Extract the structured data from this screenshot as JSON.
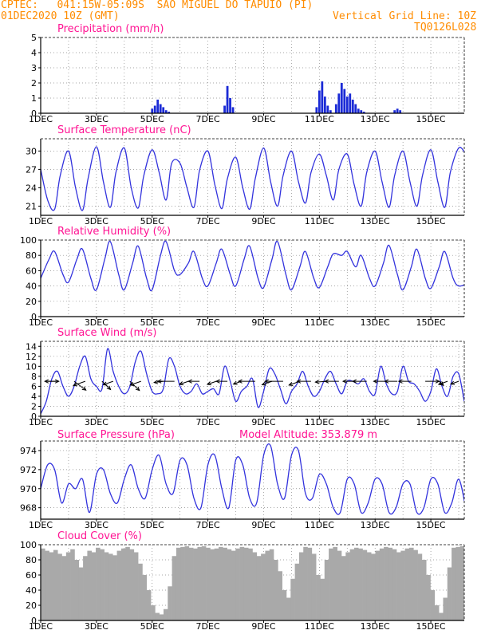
{
  "header": {
    "line1_left": "CPTEC:   041:15W-05:09S  SAO MIGUEL DO TAPUIO (PI)",
    "line2_left": "01DEC2020 10Z (GMT)",
    "line2_right": "Vertical Grid Line: 10Z",
    "line3_right": "TQ0126L028"
  },
  "colors": {
    "header": "#ff8c00",
    "title": "#ff1493",
    "line": "#3333dd",
    "bar": "#1a2ad6",
    "cloud": "#a9a9a9",
    "arrow": "#000000"
  },
  "chart_data": [
    {
      "type": "bar",
      "title": "Precipitation (mm/h)",
      "x_tick_labels": [
        "1DEC",
        "3DEC",
        "5DEC",
        "7DEC",
        "9DEC",
        "11DEC",
        "13DEC",
        "15DEC"
      ],
      "yticks": [
        "0",
        "1",
        "2",
        "3",
        "4",
        "5"
      ],
      "ylim": [
        0,
        5
      ],
      "x": [
        4.0,
        4.1,
        4.2,
        4.3,
        4.4,
        4.5,
        4.6,
        6.6,
        6.7,
        6.8,
        6.9,
        9.9,
        10.0,
        10.1,
        10.2,
        10.3,
        10.4,
        10.6,
        10.7,
        10.8,
        10.9,
        11.0,
        11.1,
        11.2,
        11.3,
        11.4,
        11.5,
        11.6,
        12.7,
        12.8,
        12.9
      ],
      "values": [
        0.3,
        0.5,
        0.9,
        0.6,
        0.4,
        0.2,
        0.1,
        0.5,
        1.8,
        1.0,
        0.4,
        0.4,
        1.5,
        2.1,
        1.1,
        0.5,
        0.2,
        0.6,
        1.3,
        2.0,
        1.6,
        1.1,
        1.3,
        0.9,
        0.6,
        0.3,
        0.2,
        0.1,
        0.2,
        0.3,
        0.2
      ]
    },
    {
      "type": "line",
      "title": "Surface Temperature (nC)",
      "x_tick_labels": [
        "1DEC",
        "3DEC",
        "5DEC",
        "7DEC",
        "9DEC",
        "11DEC",
        "13DEC",
        "15DEC"
      ],
      "yticks": [
        "21",
        "24",
        "27",
        "30"
      ],
      "ylim": [
        19.5,
        32
      ],
      "x": [
        0.0,
        0.25,
        0.5,
        0.7,
        1.0,
        1.25,
        1.5,
        1.7,
        2.0,
        2.25,
        2.5,
        2.7,
        3.0,
        3.25,
        3.5,
        3.7,
        4.0,
        4.25,
        4.5,
        4.7,
        5.0,
        5.25,
        5.5,
        5.7,
        6.0,
        6.25,
        6.5,
        6.7,
        7.0,
        7.25,
        7.5,
        7.7,
        8.0,
        8.25,
        8.5,
        8.7,
        9.0,
        9.25,
        9.5,
        9.7,
        10.0,
        10.25,
        10.5,
        10.7,
        11.0,
        11.25,
        11.5,
        11.7,
        12.0,
        12.25,
        12.5,
        12.7,
        13.0,
        13.25,
        13.5,
        13.7,
        14.0,
        14.25,
        14.5,
        14.7,
        15.0,
        15.25
      ],
      "values": [
        27.0,
        22.0,
        20.5,
        26.0,
        30.0,
        24.0,
        20.3,
        25.5,
        30.7,
        25.0,
        20.8,
        26.5,
        30.5,
        24.0,
        20.7,
        26.0,
        30.2,
        26.5,
        22.0,
        28.0,
        28.0,
        24.0,
        20.8,
        26.8,
        30.0,
        24.5,
        20.6,
        25.5,
        29.0,
        24.0,
        20.5,
        25.5,
        30.5,
        25.0,
        21.0,
        26.0,
        30.0,
        25.0,
        21.5,
        26.5,
        29.5,
        26.0,
        22.0,
        27.0,
        29.5,
        24.5,
        21.0,
        26.5,
        30.0,
        25.0,
        20.8,
        26.0,
        30.0,
        25.0,
        21.0,
        26.0,
        30.2,
        25.0,
        20.8,
        26.5,
        30.5,
        29.5
      ]
    },
    {
      "type": "line",
      "title": "Relative Humidity (%)",
      "x_tick_labels": [
        "1DEC",
        "3DEC",
        "5DEC",
        "7DEC",
        "9DEC",
        "11DEC",
        "13DEC",
        "15DEC"
      ],
      "yticks": [
        "0",
        "20",
        "40",
        "60",
        "80",
        "100"
      ],
      "ylim": [
        0,
        100
      ],
      "x": [
        0.0,
        0.3,
        0.5,
        0.8,
        1.0,
        1.3,
        1.5,
        1.8,
        2.0,
        2.3,
        2.5,
        2.8,
        3.0,
        3.3,
        3.5,
        3.8,
        4.0,
        4.3,
        4.5,
        4.8,
        5.0,
        5.3,
        5.5,
        5.8,
        6.0,
        6.3,
        6.5,
        6.8,
        7.0,
        7.3,
        7.5,
        7.8,
        8.0,
        8.3,
        8.5,
        8.8,
        9.0,
        9.3,
        9.5,
        9.8,
        10.0,
        10.3,
        10.5,
        10.8,
        11.0,
        11.3,
        11.5,
        11.8,
        12.0,
        12.3,
        12.5,
        12.8,
        13.0,
        13.3,
        13.5,
        13.8,
        14.0,
        14.3,
        14.5,
        14.8,
        15.0,
        15.3
      ],
      "values": [
        50,
        75,
        85,
        55,
        45,
        75,
        88,
        50,
        35,
        75,
        98,
        55,
        35,
        70,
        92,
        50,
        35,
        80,
        98,
        60,
        55,
        70,
        85,
        50,
        40,
        70,
        88,
        55,
        40,
        75,
        92,
        50,
        38,
        75,
        98,
        55,
        35,
        65,
        85,
        50,
        38,
        65,
        82,
        80,
        85,
        65,
        80,
        50,
        40,
        70,
        93,
        55,
        35,
        65,
        88,
        50,
        37,
        65,
        85,
        50,
        40,
        43
      ]
    },
    {
      "type": "line",
      "title": "Surface Wind (m/s)",
      "x_tick_labels": [
        "1DEC",
        "3DEC",
        "5DEC",
        "7DEC",
        "9DEC",
        "11DEC",
        "13DEC",
        "15DEC"
      ],
      "yticks": [
        "0",
        "2",
        "4",
        "6",
        "8",
        "10",
        "12",
        "14"
      ],
      "ylim": [
        0,
        15
      ],
      "x": [
        0.0,
        0.2,
        0.4,
        0.6,
        0.8,
        1.0,
        1.2,
        1.4,
        1.6,
        1.8,
        2.0,
        2.2,
        2.4,
        2.6,
        2.8,
        3.0,
        3.2,
        3.4,
        3.6,
        3.8,
        4.0,
        4.2,
        4.4,
        4.6,
        4.8,
        5.0,
        5.2,
        5.4,
        5.6,
        5.8,
        6.0,
        6.2,
        6.4,
        6.6,
        6.8,
        7.0,
        7.2,
        7.4,
        7.6,
        7.8,
        8.0,
        8.2,
        8.4,
        8.6,
        8.8,
        9.0,
        9.2,
        9.4,
        9.6,
        9.8,
        10.0,
        10.2,
        10.4,
        10.6,
        10.8,
        11.0,
        11.2,
        11.4,
        11.6,
        11.8,
        12.0,
        12.2,
        12.4,
        12.6,
        12.8,
        13.0,
        13.2,
        13.4,
        13.6,
        13.8,
        14.0,
        14.2,
        14.4,
        14.6,
        14.8,
        15.0,
        15.2
      ],
      "values": [
        0.5,
        3.0,
        7.5,
        9.0,
        6.0,
        4.0,
        6.0,
        10.0,
        12.0,
        7.5,
        6.0,
        5.5,
        13.5,
        9.0,
        6.0,
        4.5,
        6.0,
        11.0,
        13.0,
        8.5,
        5.0,
        4.5,
        5.5,
        11.5,
        10.0,
        6.0,
        4.5,
        5.0,
        6.5,
        4.5,
        5.0,
        5.5,
        4.5,
        10.0,
        7.0,
        3.0,
        5.0,
        6.0,
        7.5,
        1.8,
        5.0,
        9.5,
        8.5,
        5.5,
        2.5,
        5.0,
        6.5,
        9.0,
        6.0,
        4.0,
        5.0,
        7.5,
        9.0,
        6.5,
        4.5,
        7.0,
        7.0,
        6.5,
        7.5,
        5.0,
        4.5,
        10.0,
        6.5,
        4.5,
        5.0,
        10.0,
        7.0,
        6.5,
        5.0,
        3.0,
        5.0,
        9.5,
        6.0,
        4.0,
        8.0,
        8.5,
        3.0
      ],
      "arrows": [
        {
          "x": 0.2,
          "dir_deg": 90,
          "len": 0.45
        },
        {
          "x": 0.6,
          "dir_deg": 270,
          "len": 0.45
        },
        {
          "x": 1.2,
          "dir_deg": 155,
          "len": 1.0
        },
        {
          "x": 1.6,
          "dir_deg": 225,
          "len": 0.6
        },
        {
          "x": 2.2,
          "dir_deg": 160,
          "len": 0.9
        },
        {
          "x": 2.6,
          "dir_deg": 225,
          "len": 0.5
        },
        {
          "x": 3.2,
          "dir_deg": 160,
          "len": 1.0
        },
        {
          "x": 3.6,
          "dir_deg": 225,
          "len": 0.55
        },
        {
          "x": 4.4,
          "dir_deg": 250,
          "len": 0.35
        },
        {
          "x": 4.8,
          "dir_deg": 270,
          "len": 0.6
        },
        {
          "x": 5.3,
          "dir_deg": 225,
          "len": 0.45
        },
        {
          "x": 5.7,
          "dir_deg": 270,
          "len": 0.4
        },
        {
          "x": 6.3,
          "dir_deg": 225,
          "len": 0.45
        },
        {
          "x": 6.7,
          "dir_deg": 270,
          "len": 0.4
        },
        {
          "x": 7.2,
          "dir_deg": 225,
          "len": 0.4
        },
        {
          "x": 7.7,
          "dir_deg": 270,
          "len": 0.6
        },
        {
          "x": 8.3,
          "dir_deg": 225,
          "len": 0.5
        },
        {
          "x": 8.7,
          "dir_deg": 270,
          "len": 0.65
        },
        {
          "x": 9.3,
          "dir_deg": 225,
          "len": 0.55
        },
        {
          "x": 9.7,
          "dir_deg": 270,
          "len": 0.5
        },
        {
          "x": 10.3,
          "dir_deg": 260,
          "len": 0.45
        },
        {
          "x": 10.7,
          "dir_deg": 270,
          "len": 0.5
        },
        {
          "x": 11.3,
          "dir_deg": 270,
          "len": 0.45
        },
        {
          "x": 11.7,
          "dir_deg": 270,
          "len": 0.5
        },
        {
          "x": 12.4,
          "dir_deg": 270,
          "len": 0.45
        },
        {
          "x": 12.8,
          "dir_deg": 270,
          "len": 0.45
        },
        {
          "x": 13.3,
          "dir_deg": 270,
          "len": 0.45
        },
        {
          "x": 13.8,
          "dir_deg": 90,
          "len": 0.5
        },
        {
          "x": 14.3,
          "dir_deg": 160,
          "len": 0.45
        },
        {
          "x": 14.6,
          "dir_deg": 225,
          "len": 0.45
        },
        {
          "x": 15.0,
          "dir_deg": 225,
          "len": 0.4
        }
      ]
    },
    {
      "type": "line",
      "title": "Surface Pressure (hPa)",
      "annotation": "Model Altitude: 353.879  m",
      "x_tick_labels": [
        "1DEC",
        "3DEC",
        "5DEC",
        "7DEC",
        "9DEC",
        "11DEC",
        "13DEC",
        "15DEC"
      ],
      "yticks": [
        "968",
        "970",
        "972",
        "974"
      ],
      "ylim": [
        966.8,
        975
      ],
      "x": [
        0.0,
        0.25,
        0.5,
        0.75,
        1.0,
        1.25,
        1.5,
        1.75,
        2.0,
        2.25,
        2.5,
        2.75,
        3.0,
        3.25,
        3.5,
        3.75,
        4.0,
        4.25,
        4.5,
        4.75,
        5.0,
        5.25,
        5.5,
        5.75,
        6.0,
        6.25,
        6.5,
        6.75,
        7.0,
        7.25,
        7.5,
        7.75,
        8.0,
        8.25,
        8.5,
        8.75,
        9.0,
        9.25,
        9.5,
        9.75,
        10.0,
        10.25,
        10.5,
        10.75,
        11.0,
        11.25,
        11.5,
        11.75,
        12.0,
        12.25,
        12.5,
        12.75,
        13.0,
        13.25,
        13.5,
        13.75,
        14.0,
        14.25,
        14.5,
        14.75,
        15.0,
        15.25
      ],
      "values": [
        970.0,
        972.5,
        972.0,
        968.5,
        970.5,
        970.0,
        971.0,
        967.5,
        971.5,
        972.0,
        969.5,
        968.5,
        971.0,
        972.5,
        970.0,
        969.0,
        972.0,
        973.5,
        970.5,
        969.5,
        973.0,
        972.5,
        969.0,
        968.0,
        972.5,
        973.5,
        970.0,
        968.0,
        973.0,
        972.5,
        969.0,
        968.5,
        973.5,
        974.5,
        970.5,
        969.0,
        973.5,
        974.0,
        969.5,
        969.0,
        971.5,
        970.5,
        968.0,
        967.5,
        971.0,
        970.5,
        967.5,
        968.5,
        971.0,
        970.5,
        967.5,
        968.0,
        970.5,
        970.5,
        967.5,
        968.0,
        971.0,
        970.5,
        967.5,
        968.5,
        971.0,
        968.0
      ]
    },
    {
      "type": "bar",
      "title": "Cloud Cover (%)",
      "x_tick_labels": [
        "1DEC",
        "3DEC",
        "5DEC",
        "7DEC",
        "9DEC",
        "11DEC",
        "13DEC",
        "15DEC"
      ],
      "yticks": [
        "0",
        "20",
        "40",
        "60",
        "80",
        "100"
      ],
      "ylim": [
        0,
        100
      ],
      "values": [
        95,
        92,
        90,
        93,
        88,
        85,
        90,
        94,
        80,
        70,
        85,
        92,
        90,
        96,
        94,
        90,
        88,
        86,
        92,
        95,
        97,
        94,
        90,
        75,
        60,
        40,
        20,
        10,
        8,
        15,
        45,
        85,
        96,
        97,
        98,
        96,
        95,
        97,
        98,
        96,
        94,
        95,
        97,
        96,
        94,
        92,
        95,
        97,
        96,
        95,
        90,
        85,
        88,
        92,
        94,
        80,
        65,
        40,
        30,
        55,
        75,
        90,
        97,
        96,
        88,
        60,
        55,
        80,
        95,
        97,
        92,
        85,
        90,
        94,
        96,
        95,
        93,
        90,
        88,
        92,
        95,
        97,
        96,
        94,
        90,
        92,
        95,
        96,
        93,
        88,
        80,
        60,
        40,
        20,
        10,
        30,
        70,
        96,
        97,
        98
      ]
    }
  ]
}
